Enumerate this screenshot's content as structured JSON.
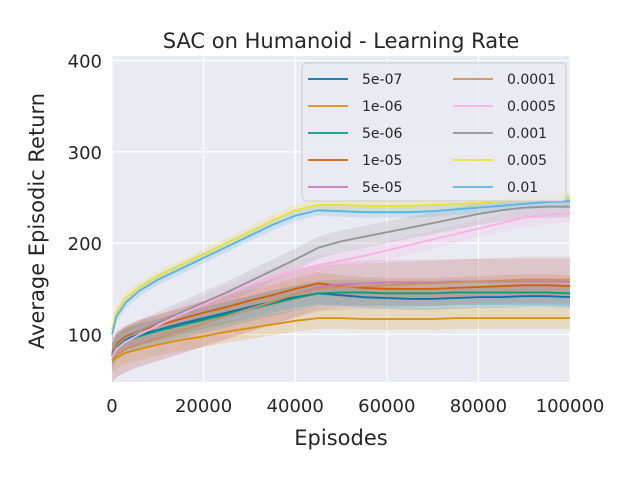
{
  "chart_data": {
    "type": "line",
    "title": "SAC on Humanoid - Learning Rate",
    "xlabel": "Episodes",
    "ylabel": "Average Episodic Return",
    "xlim": [
      0,
      100000
    ],
    "ylim": [
      48,
      405
    ],
    "xticks": [
      0,
      20000,
      40000,
      60000,
      80000,
      100000
    ],
    "xtick_labels": [
      "0",
      "20000",
      "40000",
      "60000",
      "80000",
      "100000"
    ],
    "yticks": [
      100,
      200,
      300,
      400
    ],
    "ytick_labels": [
      "100",
      "200",
      "300",
      "400"
    ],
    "grid": true,
    "legend_position": "top-right",
    "legend_columns": 2,
    "x": [
      0,
      1000,
      3000,
      6000,
      10000,
      15000,
      20000,
      25000,
      30000,
      35000,
      40000,
      45000,
      50000,
      55000,
      60000,
      65000,
      70000,
      75000,
      80000,
      85000,
      90000,
      95000,
      100000
    ],
    "series": [
      {
        "name": "5e-07",
        "color": "#0173b2",
        "band": 12,
        "values": [
          78,
          88,
          95,
          100,
          105,
          112,
          118,
          124,
          130,
          136,
          141,
          145,
          143,
          141,
          140,
          139,
          139,
          140,
          141,
          141,
          142,
          142,
          141
        ]
      },
      {
        "name": "1e-06",
        "color": "#de8f05",
        "band": 12,
        "values": [
          70,
          75,
          80,
          84,
          89,
          94,
          98,
          103,
          107,
          111,
          115,
          118,
          118,
          117,
          117,
          117,
          117,
          118,
          118,
          118,
          118,
          118,
          118
        ]
      },
      {
        "name": "5e-06",
        "color": "#029e73",
        "band": 14,
        "values": [
          76,
          86,
          93,
          98,
          104,
          110,
          116,
          122,
          128,
          134,
          140,
          145,
          146,
          146,
          145,
          145,
          145,
          146,
          146,
          146,
          146,
          146,
          145
        ]
      },
      {
        "name": "1e-05",
        "color": "#d55e00",
        "band": 12,
        "values": [
          80,
          90,
          98,
          104,
          110,
          117,
          124,
          130,
          137,
          143,
          150,
          156,
          153,
          151,
          150,
          150,
          150,
          151,
          152,
          153,
          154,
          154,
          153
        ]
      },
      {
        "name": "5e-05",
        "color": "#cc78bc",
        "band": 25,
        "values": [
          72,
          78,
          84,
          90,
          96,
          104,
          112,
          120,
          128,
          136,
          144,
          152,
          155,
          156,
          157,
          157,
          157,
          158,
          158,
          158,
          158,
          158,
          158
        ]
      },
      {
        "name": "0.0001",
        "color": "#ca9161",
        "band": 25,
        "values": [
          72,
          78,
          84,
          90,
          96,
          104,
          112,
          120,
          128,
          136,
          144,
          150,
          152,
          153,
          154,
          155,
          156,
          157,
          158,
          159,
          160,
          160,
          160
        ]
      },
      {
        "name": "0.0005",
        "color": "#fbafe4",
        "band": 10,
        "values": [
          75,
          84,
          92,
          100,
          110,
          122,
          133,
          144,
          154,
          163,
          170,
          176,
          181,
          186,
          192,
          198,
          204,
          210,
          216,
          222,
          228,
          231,
          233
        ]
      },
      {
        "name": "0.001",
        "color": "#949494",
        "band": 12,
        "values": [
          78,
          88,
          96,
          104,
          113,
          124,
          135,
          146,
          158,
          170,
          182,
          195,
          202,
          207,
          212,
          217,
          222,
          227,
          232,
          236,
          239,
          240,
          240
        ]
      },
      {
        "name": "0.005",
        "color": "#ece133",
        "band": 6,
        "values": [
          105,
          125,
          140,
          152,
          164,
          176,
          188,
          200,
          212,
          225,
          236,
          242,
          242,
          241,
          241,
          241,
          242,
          243,
          244,
          246,
          248,
          250,
          250
        ]
      },
      {
        "name": "0.01",
        "color": "#56b4e9",
        "band": 6,
        "values": [
          100,
          120,
          135,
          148,
          160,
          172,
          184,
          196,
          208,
          220,
          230,
          236,
          235,
          234,
          234,
          234,
          235,
          237,
          239,
          241,
          243,
          245,
          246
        ]
      }
    ]
  }
}
